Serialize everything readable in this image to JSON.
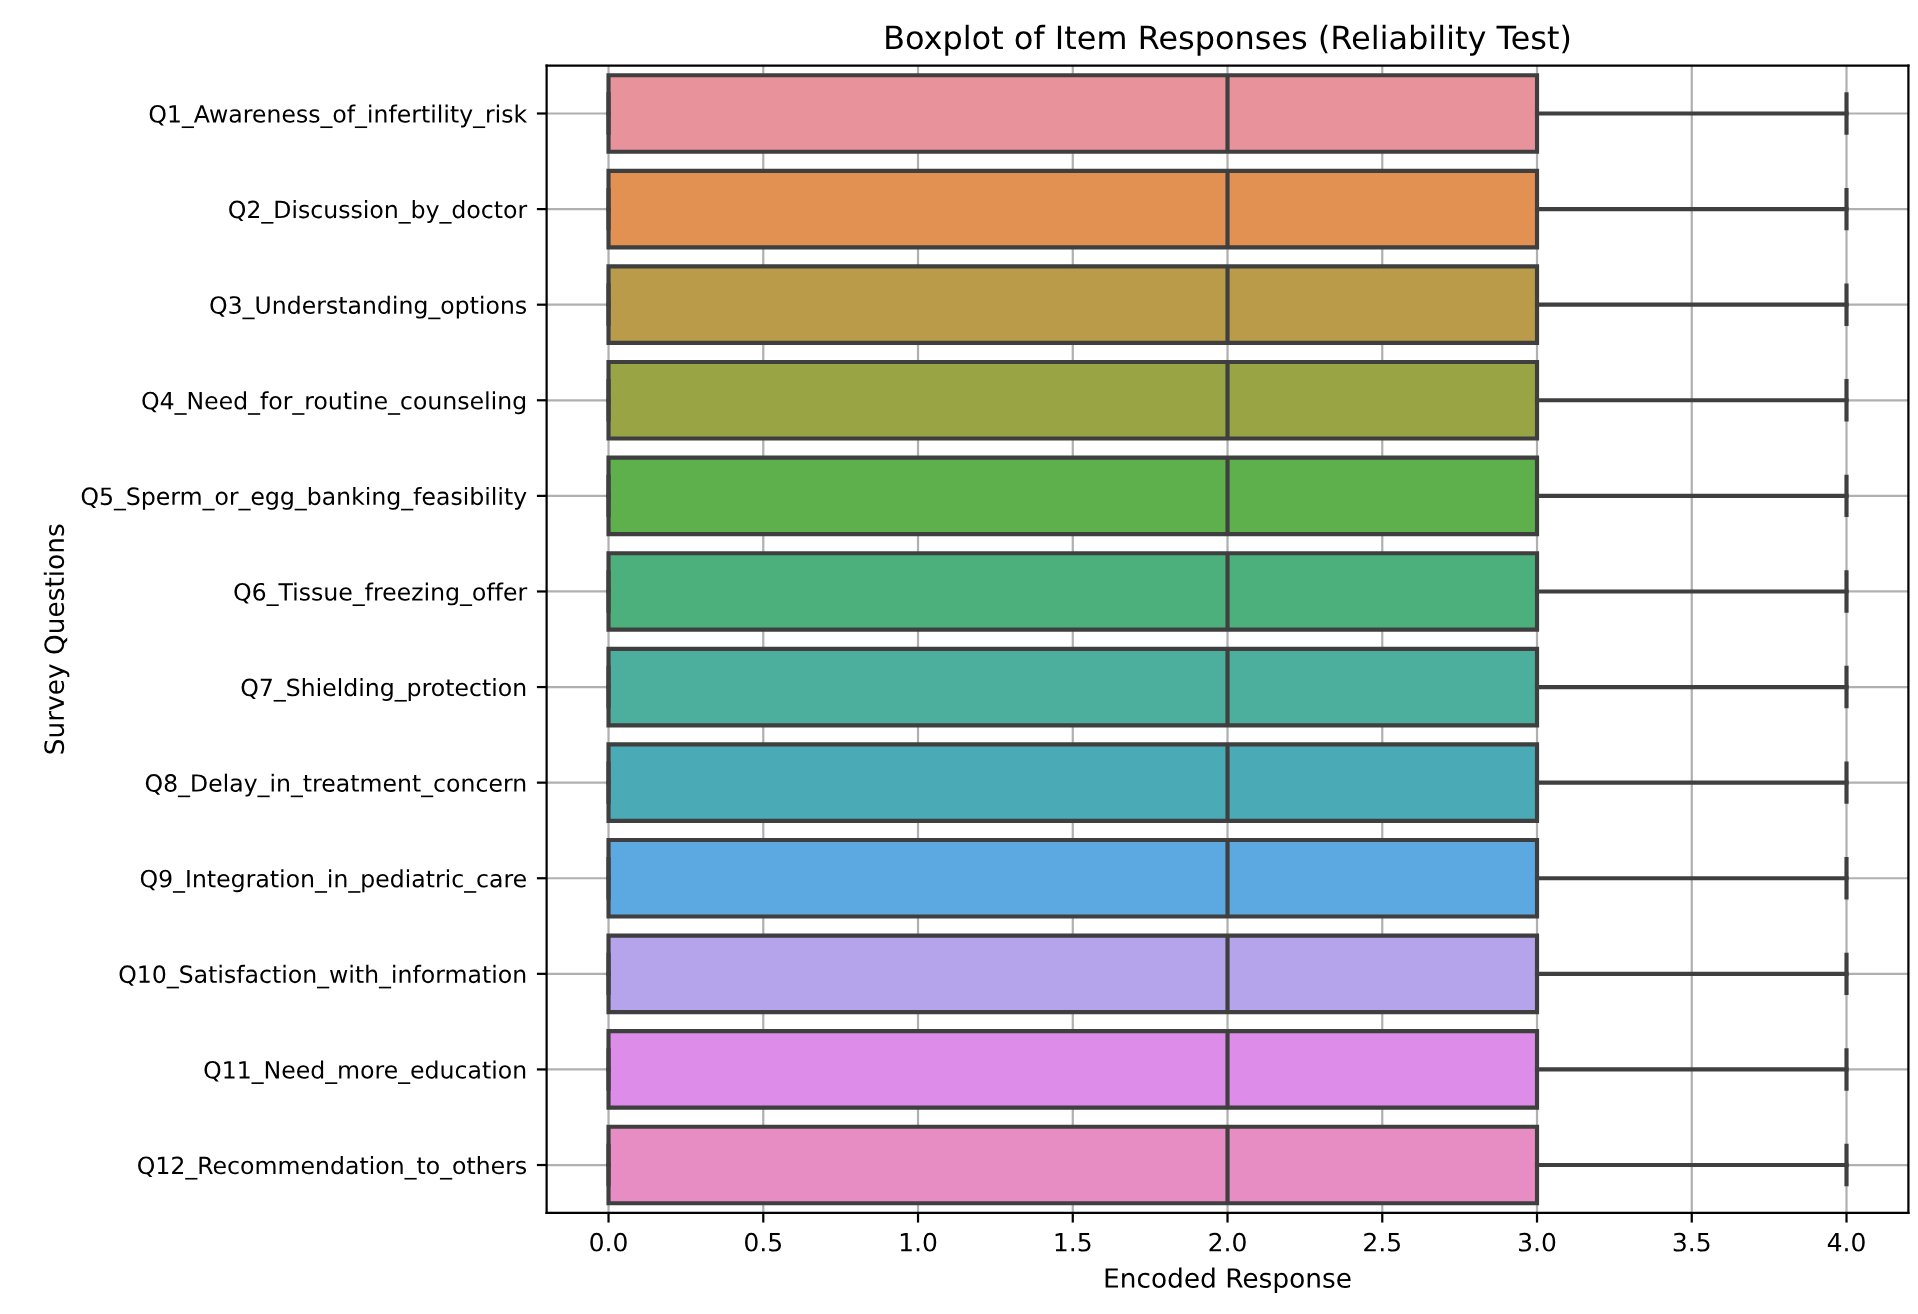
{
  "chart_data": {
    "type": "box",
    "orientation": "horizontal",
    "title": "Boxplot of Item Responses (Reliability Test)",
    "xlabel": "Encoded Response",
    "ylabel": "Survey Questions",
    "categories": [
      "Q1_Awareness_of_infertility_risk",
      "Q2_Discussion_by_doctor",
      "Q3_Understanding_options",
      "Q4_Need_for_routine_counseling",
      "Q5_Sperm_or_egg_banking_feasibility",
      "Q6_Tissue_freezing_offer",
      "Q7_Shielding_protection",
      "Q8_Delay_in_treatment_concern",
      "Q9_Integration_in_pediatric_care",
      "Q10_Satisfaction_with_information",
      "Q11_Need_more_education",
      "Q12_Recommendation_to_others"
    ],
    "colors": [
      "#e8939c",
      "#e39152",
      "#b99b4a",
      "#99a445",
      "#5eb04d",
      "#4cb07d",
      "#4cae9d",
      "#4aabb7",
      "#5ca8e0",
      "#b5a3ec",
      "#dd8de9",
      "#e78dc3"
    ],
    "boxes": [
      {
        "low": 0,
        "q1": 0,
        "median": 2,
        "q3": 3,
        "high": 4
      },
      {
        "low": 0,
        "q1": 0,
        "median": 2,
        "q3": 3,
        "high": 4
      },
      {
        "low": 0,
        "q1": 0,
        "median": 2,
        "q3": 3,
        "high": 4
      },
      {
        "low": 0,
        "q1": 0,
        "median": 2,
        "q3": 3,
        "high": 4
      },
      {
        "low": 0,
        "q1": 0,
        "median": 2,
        "q3": 3,
        "high": 4
      },
      {
        "low": 0,
        "q1": 0,
        "median": 2,
        "q3": 3,
        "high": 4
      },
      {
        "low": 0,
        "q1": 0,
        "median": 2,
        "q3": 3,
        "high": 4
      },
      {
        "low": 0,
        "q1": 0,
        "median": 2,
        "q3": 3,
        "high": 4
      },
      {
        "low": 0,
        "q1": 0,
        "median": 2,
        "q3": 3,
        "high": 4
      },
      {
        "low": 0,
        "q1": 0,
        "median": 2,
        "q3": 3,
        "high": 4
      },
      {
        "low": 0,
        "q1": 0,
        "median": 2,
        "q3": 3,
        "high": 4
      },
      {
        "low": 0,
        "q1": 0,
        "median": 2,
        "q3": 3,
        "high": 4
      }
    ],
    "xlim": [
      -0.2,
      4.2
    ],
    "xticks": [
      {
        "value": 0,
        "label": "0.0"
      },
      {
        "value": 0.5,
        "label": "0.5"
      },
      {
        "value": 1,
        "label": "1.0"
      },
      {
        "value": 1.5,
        "label": "1.5"
      },
      {
        "value": 2,
        "label": "2.0"
      },
      {
        "value": 2.5,
        "label": "2.5"
      },
      {
        "value": 3,
        "label": "3.0"
      },
      {
        "value": 3.5,
        "label": "3.5"
      },
      {
        "value": 4,
        "label": "4.0"
      }
    ],
    "grid": true
  }
}
